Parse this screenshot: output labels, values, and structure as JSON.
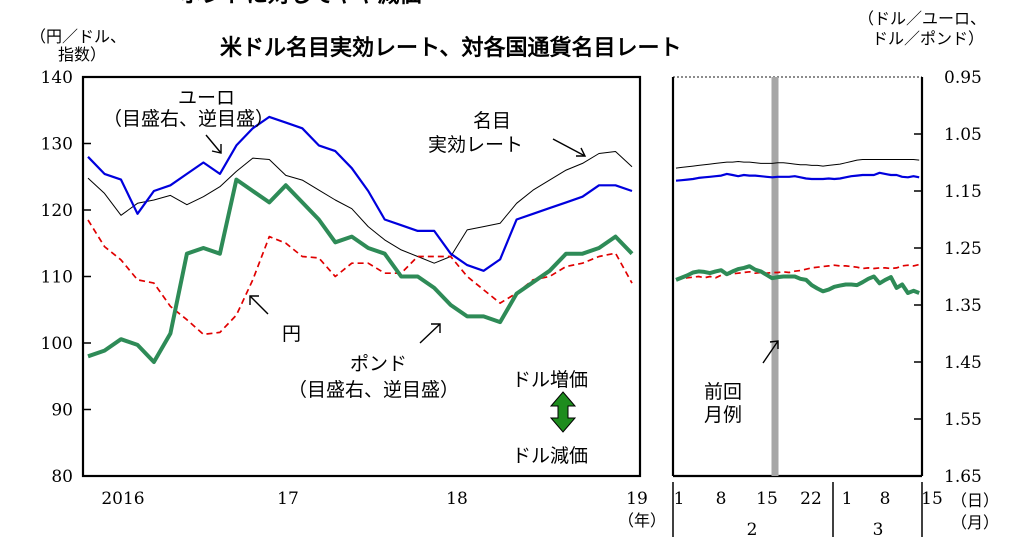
{
  "header_partial": "ポンドに対してやや減価",
  "chart_data": [
    {
      "type": "line",
      "title": "米ドル名目実効レート、対各国通貨名目レート",
      "left_axis_label_line1": "（円／ドル、",
      "left_axis_label_line2": "指数）",
      "right_axis_label_line1": "（ドル／ユーロ、",
      "right_axis_label_line2": "ドル／ポンド）",
      "ylim_left": [
        80,
        140
      ],
      "yticks_left": [
        "80",
        "90",
        "100",
        "110",
        "120",
        "130",
        "140"
      ],
      "ylim_right_inverted": [
        0.95,
        1.65
      ],
      "yticks_right": [
        "0.95",
        "1.05",
        "1.15",
        "1.25",
        "1.35",
        "1.45",
        "1.55",
        "1.65"
      ],
      "xticks_left": [
        "2016",
        "17",
        "18",
        "19"
      ],
      "x_unit_left": "（年）",
      "xticks_right_days": [
        "1",
        "8",
        "15",
        "22",
        "1",
        "8",
        "15"
      ],
      "x_unit_right_day": "（日）",
      "xticks_right_months": [
        "2",
        "3"
      ],
      "x_unit_right_month": "（月）",
      "annotations": {
        "euro_1": "ユーロ",
        "euro_2": "（目盛右、逆目盛）",
        "neer_1": "名目",
        "neer_2": "実効レート",
        "yen": "円",
        "pound_1": "ポンド",
        "pound_2": "（目盛右、逆目盛）",
        "usd_up": "ドル増価",
        "usd_down": "ドル減価",
        "prev_1": "前回",
        "prev_2": "月例"
      },
      "colors": {
        "euro": "#0000dd",
        "neer": "#000000",
        "yen": "#e00000",
        "pound": "#2e8b57",
        "marker": "#a6a6a6",
        "arrow": "#1e8c1e"
      },
      "monthly_panel": {
        "x_start": 2016.0,
        "x_step": 0.0833,
        "series": [
          {
            "key": "neer",
            "axis": "left",
            "values": [
              124.8,
              122.5,
              119.2,
              121.0,
              121.5,
              122.2,
              120.8,
              122.0,
              123.5,
              125.8,
              127.8,
              127.6,
              125.2,
              124.5,
              123.0,
              121.5,
              120.2,
              117.5,
              115.5,
              114.0,
              113.0,
              112.0,
              113.0,
              117.0,
              117.5,
              118.0,
              121.0,
              123.0,
              124.5,
              126.0,
              127.0,
              128.5,
              128.8,
              126.5
            ]
          },
          {
            "key": "euro",
            "axis": "right",
            "values": [
              1.09,
              1.12,
              1.13,
              1.19,
              1.15,
              1.14,
              1.12,
              1.1,
              1.12,
              1.07,
              1.04,
              1.02,
              1.03,
              1.04,
              1.07,
              1.08,
              1.11,
              1.15,
              1.2,
              1.21,
              1.22,
              1.22,
              1.26,
              1.28,
              1.29,
              1.27,
              1.2,
              1.19,
              1.18,
              1.17,
              1.16,
              1.14,
              1.14,
              1.15
            ]
          },
          {
            "key": "yen",
            "axis": "left",
            "values": [
              118.5,
              114.5,
              112.5,
              109.5,
              109.0,
              105.5,
              103.5,
              101.3,
              101.6,
              104.2,
              109.5,
              116.0,
              115.0,
              113.0,
              112.8,
              110.0,
              112.0,
              112.0,
              110.5,
              110.5,
              113.0,
              113.0,
              113.0,
              110.0,
              108.0,
              106.0,
              107.5,
              109.5,
              110.0,
              111.5,
              112.0,
              113.0,
              113.5,
              109.0
            ]
          },
          {
            "key": "pound",
            "axis": "right",
            "values": [
              1.44,
              1.43,
              1.41,
              1.42,
              1.45,
              1.4,
              1.26,
              1.25,
              1.26,
              1.13,
              1.15,
              1.17,
              1.14,
              1.17,
              1.2,
              1.24,
              1.23,
              1.25,
              1.26,
              1.3,
              1.3,
              1.32,
              1.35,
              1.37,
              1.37,
              1.38,
              1.33,
              1.31,
              1.29,
              1.26,
              1.26,
              1.25,
              1.23,
              1.26
            ]
          }
        ]
      },
      "daily_panel": {
        "x_min": 1,
        "x_max": 44.5,
        "prev_marker_x": 18.5,
        "x": [
          1,
          2,
          3,
          4,
          5,
          6,
          7,
          8,
          9,
          10,
          11,
          12,
          13,
          14,
          15,
          16,
          17,
          18,
          19,
          20,
          21,
          22,
          23,
          24,
          25,
          26,
          27,
          28,
          29,
          30,
          31,
          32,
          33,
          34,
          35,
          36,
          37,
          38,
          39,
          40,
          41,
          42,
          43,
          44
        ],
        "series": [
          {
            "key": "neer",
            "axis": "left",
            "values": [
              126.3,
              126.4,
              126.5,
              126.6,
              126.7,
              126.8,
              126.9,
              127.0,
              127.1,
              127.2,
              127.2,
              127.3,
              127.2,
              127.2,
              127.1,
              127.0,
              127.0,
              127.0,
              127.1,
              127.1,
              127.0,
              126.9,
              126.8,
              126.8,
              126.7,
              126.7,
              126.6,
              126.7,
              126.8,
              126.9,
              127.1,
              127.3,
              127.5,
              127.6,
              127.6,
              127.6,
              127.6,
              127.6,
              127.6,
              127.6,
              127.6,
              127.6,
              127.6,
              127.5
            ]
          },
          {
            "key": "euro",
            "axis": "right",
            "values": [
              1.132,
              1.131,
              1.13,
              1.129,
              1.127,
              1.126,
              1.125,
              1.124,
              1.123,
              1.12,
              1.122,
              1.124,
              1.122,
              1.123,
              1.123,
              1.124,
              1.125,
              1.126,
              1.125,
              1.125,
              1.125,
              1.124,
              1.126,
              1.128,
              1.129,
              1.129,
              1.129,
              1.128,
              1.129,
              1.128,
              1.126,
              1.124,
              1.123,
              1.122,
              1.122,
              1.122,
              1.118,
              1.12,
              1.122,
              1.122,
              1.125,
              1.126,
              1.124,
              1.126
            ]
          },
          {
            "key": "yen",
            "axis": "left",
            "values": [
              109.6,
              109.7,
              109.8,
              109.9,
              110.0,
              109.8,
              110.0,
              109.8,
              110.2,
              110.3,
              110.4,
              110.5,
              110.6,
              110.7,
              110.5,
              110.6,
              110.5,
              110.6,
              110.6,
              110.7,
              110.6,
              110.8,
              110.9,
              111.1,
              111.3,
              111.4,
              111.5,
              111.6,
              111.7,
              111.6,
              111.6,
              111.5,
              111.4,
              111.2,
              111.3,
              111.2,
              111.3,
              111.3,
              111.2,
              111.3,
              111.6,
              111.7,
              111.6,
              111.8
            ]
          },
          {
            "key": "pound",
            "axis": "right",
            "values": [
              1.306,
              1.302,
              1.298,
              1.293,
              1.291,
              1.292,
              1.294,
              1.291,
              1.289,
              1.296,
              1.291,
              1.287,
              1.285,
              1.282,
              1.288,
              1.291,
              1.297,
              1.303,
              1.301,
              1.3,
              1.3,
              1.3,
              1.304,
              1.306,
              1.315,
              1.321,
              1.326,
              1.323,
              1.318,
              1.316,
              1.314,
              1.314,
              1.315,
              1.31,
              1.304,
              1.3,
              1.312,
              1.306,
              1.301,
              1.32,
              1.314,
              1.329,
              1.325,
              1.329
            ]
          }
        ]
      }
    }
  ]
}
